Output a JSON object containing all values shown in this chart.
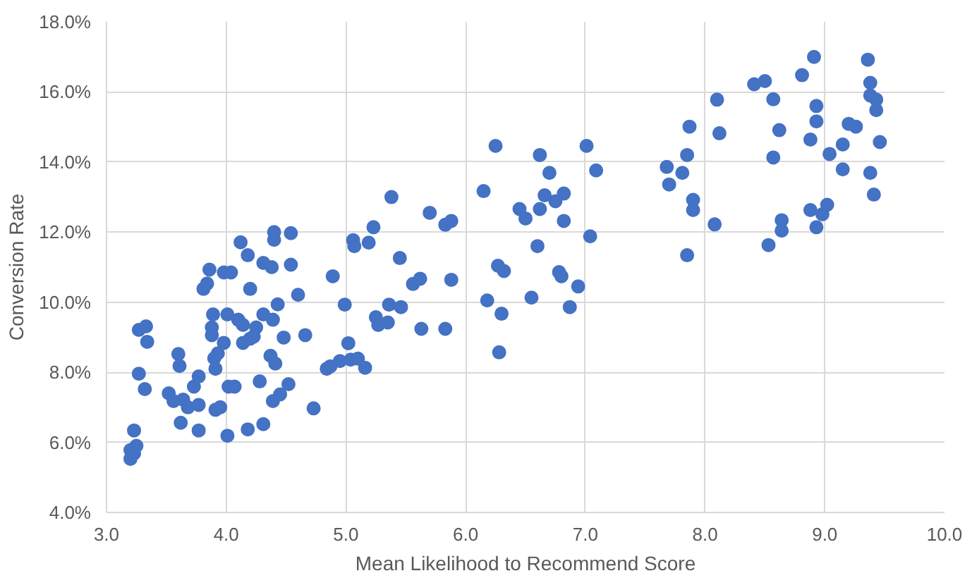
{
  "chart_data": {
    "type": "scatter",
    "xlabel": "Mean Likelihood to Recommend Score",
    "ylabel": "Conversion Rate",
    "xlim": [
      3,
      10
    ],
    "ylim": [
      4,
      18
    ],
    "xticks": [
      {
        "value": 3,
        "label": "3.0"
      },
      {
        "value": 4,
        "label": "4.0"
      },
      {
        "value": 5,
        "label": "5.0"
      },
      {
        "value": 6,
        "label": "6.0"
      },
      {
        "value": 7,
        "label": "7.0"
      },
      {
        "value": 8,
        "label": "8.0"
      },
      {
        "value": 9,
        "label": "9.0"
      },
      {
        "value": 10,
        "label": "10.0"
      }
    ],
    "yticks": [
      {
        "value": 4,
        "label": "4.0%"
      },
      {
        "value": 6,
        "label": "6.0%"
      },
      {
        "value": 8,
        "label": "8.0%"
      },
      {
        "value": 10,
        "label": "10.0%"
      },
      {
        "value": 12,
        "label": "12.0%"
      },
      {
        "value": 14,
        "label": "14.0%"
      },
      {
        "value": 16,
        "label": "16.0%"
      },
      {
        "value": 18,
        "label": "18.0%"
      }
    ],
    "grid": true,
    "marker": "circle",
    "series": [
      {
        "color": "#4472c4",
        "x": [
          3.23,
          3.2,
          3.25,
          3.2,
          3.23,
          3.27,
          3.33,
          3.34,
          3.27,
          3.32,
          3.52,
          3.6,
          3.61,
          3.56,
          3.64,
          3.62,
          3.68,
          3.77,
          3.73,
          3.77,
          3.77,
          3.81,
          3.84,
          3.86,
          3.98,
          4.04,
          3.89,
          3.88,
          3.88,
          3.9,
          3.91,
          3.93,
          3.98,
          4.01,
          3.91,
          3.95,
          4.01,
          4.02,
          4.07,
          4.12,
          4.18,
          4.2,
          4.1,
          4.14,
          4.14,
          4.2,
          4.25,
          4.23,
          4.31,
          4.39,
          4.18,
          4.28,
          4.31,
          4.31,
          4.38,
          4.4,
          4.4,
          4.54,
          4.54,
          4.6,
          4.43,
          4.48,
          4.37,
          4.41,
          4.52,
          4.45,
          4.39,
          4.66,
          4.73,
          4.84,
          4.89,
          4.99,
          4.87,
          4.95,
          5.02,
          5.04,
          5.1,
          5.16,
          5.06,
          5.07,
          5.19,
          5.23,
          5.38,
          5.45,
          5.25,
          5.27,
          5.35,
          5.36,
          5.46,
          5.56,
          5.62,
          5.63,
          5.7,
          5.83,
          5.88,
          5.88,
          5.83,
          6.15,
          6.25,
          6.18,
          6.27,
          6.32,
          6.3,
          6.28,
          6.45,
          6.5,
          6.62,
          6.7,
          6.66,
          6.62,
          6.75,
          6.82,
          6.82,
          6.6,
          6.55,
          6.78,
          6.8,
          6.87,
          6.94,
          7.01,
          7.09,
          7.04,
          7.68,
          7.81,
          7.7,
          7.85,
          7.87,
          7.9,
          7.9,
          8.08,
          7.85,
          8.1,
          8.12,
          8.41,
          8.5,
          8.57,
          8.62,
          8.57,
          8.64,
          8.64,
          8.53,
          8.81,
          8.91,
          8.93,
          8.93,
          8.88,
          8.88,
          8.98,
          9.02,
          8.93,
          9.04,
          9.15,
          9.2,
          9.26,
          9.15,
          9.36,
          9.38,
          9.38,
          9.43,
          9.43,
          9.46,
          9.38,
          9.41
        ],
        "values": [
          6.34,
          5.78,
          5.9,
          5.53,
          5.68,
          9.21,
          9.31,
          8.87,
          7.96,
          7.52,
          7.4,
          8.52,
          8.18,
          7.18,
          7.22,
          6.56,
          7.0,
          7.07,
          7.59,
          7.88,
          6.34,
          10.38,
          10.53,
          10.93,
          10.85,
          10.85,
          9.65,
          9.28,
          9.06,
          8.4,
          8.1,
          8.54,
          8.84,
          9.65,
          6.93,
          7.0,
          6.19,
          7.59,
          7.59,
          11.71,
          11.34,
          10.38,
          9.5,
          9.35,
          8.84,
          8.96,
          9.28,
          9.02,
          9.65,
          9.5,
          6.37,
          7.74,
          6.52,
          11.12,
          11.0,
          12.0,
          11.78,
          11.97,
          11.07,
          10.21,
          9.94,
          8.99,
          8.47,
          8.25,
          7.66,
          7.37,
          7.18,
          9.06,
          6.97,
          8.1,
          10.74,
          9.93,
          8.17,
          8.32,
          8.83,
          8.36,
          8.39,
          8.13,
          11.77,
          11.6,
          11.7,
          12.14,
          13.0,
          11.26,
          9.57,
          9.35,
          9.42,
          9.93,
          9.86,
          10.52,
          10.67,
          9.24,
          12.55,
          12.21,
          12.32,
          10.64,
          9.24,
          13.17,
          14.46,
          10.05,
          11.04,
          10.89,
          9.67,
          8.57,
          12.66,
          12.39,
          14.2,
          13.69,
          13.05,
          12.66,
          12.88,
          13.1,
          12.32,
          11.6,
          10.13,
          10.86,
          10.74,
          9.86,
          10.45,
          14.46,
          13.76,
          11.88,
          13.86,
          13.69,
          13.36,
          14.2,
          15.01,
          12.92,
          12.63,
          12.22,
          11.34,
          15.78,
          14.82,
          16.22,
          16.31,
          15.79,
          14.91,
          14.13,
          12.34,
          12.04,
          11.63,
          16.48,
          17.0,
          15.6,
          15.16,
          14.64,
          12.63,
          12.51,
          12.78,
          12.14,
          14.23,
          14.5,
          15.09,
          15.01,
          13.79,
          16.92,
          16.26,
          15.9,
          15.78,
          15.48,
          14.57,
          13.69,
          13.07
        ]
      }
    ]
  }
}
